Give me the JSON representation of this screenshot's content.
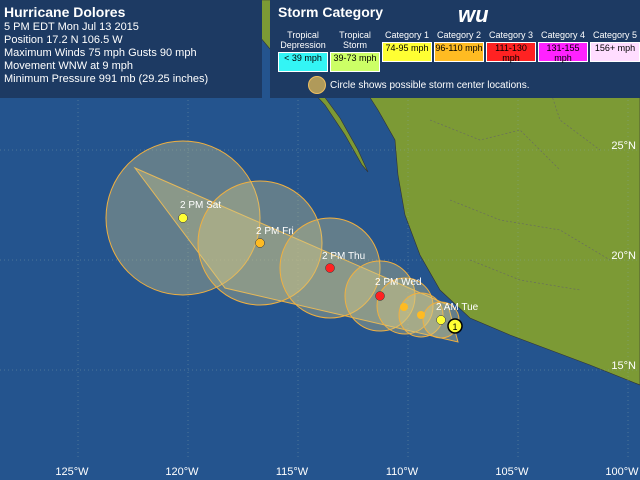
{
  "info": {
    "title": "Hurricane Dolores",
    "lines": [
      "5 PM EDT Mon Jul 13 2015",
      "Position 17.2 N 106.5 W",
      "Maximum Winds 75 mph  Gusts 90 mph",
      "Movement WNW at 9 mph",
      "Minimum Pressure 991 mb (29.25 inches)"
    ]
  },
  "legend": {
    "title": "Storm Category",
    "logo": "wu",
    "categories": [
      {
        "name": "Tropical Depression",
        "range": "< 39 mph",
        "color": "#33f5f5"
      },
      {
        "name": "Tropical Storm",
        "range": "39-73 mph",
        "color": "#ccff66"
      },
      {
        "name": "Category 1",
        "range": "74-95 mph",
        "color": "#ffff33"
      },
      {
        "name": "Category 2",
        "range": "96-110 mph",
        "color": "#ffbb22"
      },
      {
        "name": "Category 3",
        "range": "111-130 mph",
        "color": "#ff2222"
      },
      {
        "name": "Category 4",
        "range": "131-155 mph",
        "color": "#ff22ff"
      },
      {
        "name": "Category 5",
        "range": "156+ mph",
        "color": "#ffddff"
      }
    ],
    "note": "Circle shows possible storm center locations."
  },
  "longitudes": [
    "125°W",
    "120°W",
    "115°W",
    "110°W",
    "105°W",
    "100°W"
  ],
  "latitudes": [
    "25°N",
    "20°N",
    "15°N"
  ],
  "forecast": [
    {
      "label": "2 PM Sat"
    },
    {
      "label": "2 PM Fri"
    },
    {
      "label": "2 PM Thu"
    },
    {
      "label": "2 PM Wed"
    },
    {
      "label": "2 AM Tue"
    }
  ],
  "current_category": "1"
}
